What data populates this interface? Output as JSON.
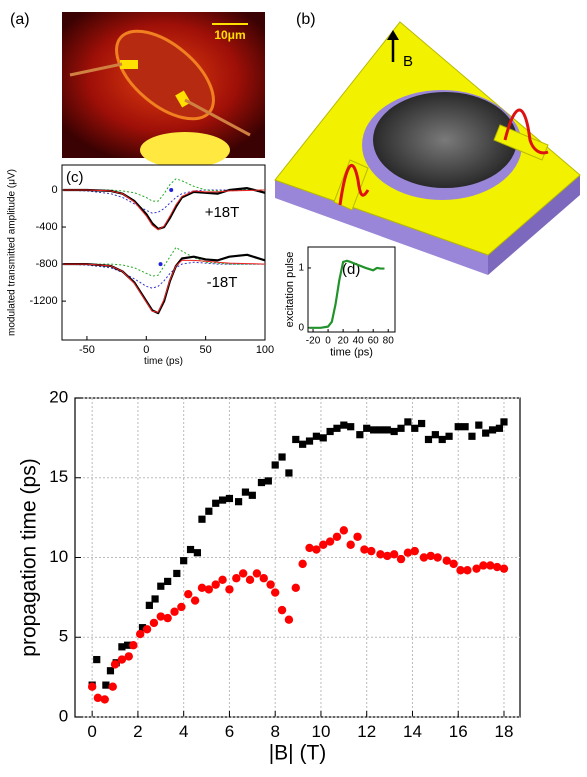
{
  "panels": {
    "a": {
      "label": "(a)",
      "scale_bar": "10μm"
    },
    "b": {
      "label": "(b)",
      "field": "B"
    }
  },
  "chart_data": [
    {
      "type": "line",
      "label": "(c)",
      "xlabel": "time (ps)",
      "ylabel": "modulated transmitted amplitude (μV)",
      "annotations": [
        "+18T",
        "-18T"
      ],
      "x": [
        -70,
        -50,
        -30,
        -20,
        -10,
        0,
        5,
        10,
        15,
        20,
        25,
        30,
        40,
        50,
        60,
        70,
        85,
        100
      ],
      "xlim": [
        -71,
        100
      ],
      "xticks": [
        -50,
        0,
        50,
        100
      ],
      "ylim": [
        -1620,
        270
      ],
      "yticks": [
        0,
        -400,
        -800,
        -1200
      ],
      "grid": false,
      "series": [
        {
          "color": "#3333cc",
          "style": "dotted",
          "values": [
            0,
            -10,
            -40,
            -80,
            -150,
            -220,
            -250,
            -240,
            -200,
            -140,
            -80,
            -40,
            -10,
            0,
            0,
            0,
            0,
            0
          ]
        },
        {
          "color": "#22aa22",
          "style": "dotted",
          "values": [
            0,
            0,
            0,
            -10,
            -30,
            -80,
            -120,
            -120,
            -40,
            60,
            120,
            100,
            40,
            0,
            -10,
            -10,
            0,
            0
          ]
        },
        {
          "color": "#000000",
          "style": "thick",
          "values": [
            0,
            0,
            -10,
            -40,
            -120,
            -260,
            -360,
            -420,
            -400,
            -300,
            -180,
            -80,
            -20,
            -30,
            -40,
            0,
            20,
            -30
          ]
        },
        {
          "color": "#ee2222",
          "style": "thin",
          "values": [
            0,
            0,
            -10,
            -40,
            -130,
            -280,
            -380,
            -430,
            -390,
            -280,
            -160,
            -70,
            -10,
            -20,
            -20,
            -10,
            -5,
            0
          ]
        },
        {
          "color": "#3333cc",
          "style": "dotted",
          "values": [
            -800,
            -810,
            -840,
            -890,
            -960,
            -1040,
            -1060,
            -1040,
            -980,
            -900,
            -840,
            -800,
            -780,
            -790,
            -800,
            -800,
            -800,
            -800
          ]
        },
        {
          "color": "#22aa22",
          "style": "dotted",
          "values": [
            -800,
            -800,
            -800,
            -810,
            -840,
            -900,
            -930,
            -920,
            -820,
            -720,
            -620,
            -660,
            -730,
            -780,
            -790,
            -800,
            -800,
            -800
          ]
        },
        {
          "color": "#000000",
          "style": "thick",
          "values": [
            -800,
            -800,
            -820,
            -880,
            -1000,
            -1200,
            -1300,
            -1330,
            -1200,
            -980,
            -820,
            -740,
            -720,
            -750,
            -760,
            -720,
            -700,
            -760
          ]
        },
        {
          "color": "#ee2222",
          "style": "thin",
          "values": [
            -800,
            -800,
            -820,
            -880,
            -1010,
            -1210,
            -1310,
            -1320,
            -1180,
            -970,
            -820,
            -760,
            -760,
            -770,
            -780,
            -790,
            -795,
            -800
          ]
        },
        {
          "color": "#2222dd",
          "marker": "circle",
          "x": [
            21,
            12
          ],
          "values": [
            0,
            -800
          ]
        }
      ]
    },
    {
      "type": "line",
      "label": "(d)",
      "xlabel": "time (ps)",
      "ylabel": "excitation pulse",
      "x": [
        -25,
        -10,
        0,
        5,
        10,
        15,
        20,
        25,
        30,
        40,
        50,
        60,
        65,
        70,
        75
      ],
      "xlim": [
        -26.7,
        89
      ],
      "xticks": [
        -20,
        0,
        20,
        40,
        60,
        80
      ],
      "ylim": [
        -0.07,
        1.35
      ],
      "yticks": [
        0,
        1
      ],
      "grid": false,
      "series": [
        {
          "color": "#22932a",
          "style": "thick",
          "values": [
            0,
            0,
            0.02,
            0.1,
            0.4,
            0.8,
            1.1,
            1.12,
            1.1,
            1.05,
            1.0,
            0.96,
            1.0,
            0.99,
            0.99
          ]
        }
      ]
    },
    {
      "type": "scatter",
      "xlabel": "|B| (T)",
      "ylabel": "propagation time (ps)",
      "xlim": [
        -0.75,
        18.7
      ],
      "xticks": [
        0,
        2,
        4,
        6,
        8,
        10,
        12,
        14,
        16,
        18
      ],
      "ylim": [
        0,
        20
      ],
      "yticks": [
        0,
        5,
        10,
        15,
        20
      ],
      "grid": true,
      "series": [
        {
          "color": "#000000",
          "marker": "square",
          "x": [
            0,
            0.2,
            0.6,
            0.8,
            1.05,
            1.3,
            1.55,
            2.2,
            2.5,
            2.75,
            3.0,
            3.3,
            3.7,
            4.0,
            4.3,
            4.6,
            4.8,
            5.1,
            5.4,
            5.7,
            6.0,
            6.4,
            6.7,
            7.0,
            7.4,
            7.7,
            8.0,
            8.3,
            8.6,
            8.9,
            9.2,
            9.5,
            9.8,
            10.1,
            10.4,
            10.7,
            11.0,
            11.3,
            11.7,
            12.0,
            12.3,
            12.6,
            12.9,
            13.2,
            13.5,
            13.8,
            14.1,
            14.4,
            14.7,
            15.0,
            15.3,
            15.6,
            16.0,
            16.3,
            16.6,
            16.9,
            17.2,
            17.5,
            17.8,
            18.0
          ],
          "values": [
            2.0,
            3.6,
            2.0,
            2.9,
            3.4,
            4.4,
            4.5,
            5.6,
            7.0,
            7.4,
            8.2,
            8.5,
            9.0,
            9.8,
            10.5,
            10.3,
            12.4,
            12.9,
            13.4,
            13.6,
            13.7,
            13.5,
            14.1,
            13.9,
            14.7,
            14.8,
            15.8,
            16.3,
            15.3,
            17.4,
            17.1,
            17.3,
            17.6,
            17.5,
            17.9,
            18.1,
            18.3,
            18.2,
            17.7,
            18.1,
            18.0,
            18.0,
            18.0,
            17.9,
            18.1,
            18.5,
            18.1,
            18.4,
            17.4,
            17.7,
            17.4,
            17.6,
            18.2,
            18.2,
            17.6,
            18.3,
            17.8,
            18.0,
            18.1,
            18.5
          ]
        },
        {
          "color": "#ff0000",
          "marker": "circle",
          "x": [
            0,
            0.25,
            0.55,
            0.9,
            1.0,
            1.3,
            1.6,
            1.8,
            2.1,
            2.4,
            2.7,
            3.0,
            3.3,
            3.6,
            3.9,
            4.2,
            4.5,
            4.8,
            5.1,
            5.4,
            5.7,
            6.0,
            6.3,
            6.6,
            6.9,
            7.2,
            7.5,
            7.8,
            8.0,
            8.3,
            8.6,
            8.9,
            9.2,
            9.5,
            9.8,
            10.1,
            10.4,
            10.7,
            11.0,
            11.3,
            11.6,
            11.9,
            12.2,
            12.6,
            12.9,
            13.2,
            13.5,
            13.8,
            14.1,
            14.5,
            14.8,
            15.1,
            15.5,
            15.8,
            16.1,
            16.4,
            16.8,
            17.1,
            17.4,
            17.7,
            18.0
          ],
          "values": [
            1.9,
            1.2,
            1.1,
            1.9,
            3.3,
            3.6,
            3.8,
            4.5,
            5.2,
            5.5,
            5.9,
            6.3,
            6.2,
            6.6,
            6.9,
            7.7,
            7.3,
            8.1,
            8.0,
            8.3,
            8.6,
            8.0,
            8.7,
            9.0,
            8.6,
            9.0,
            8.7,
            8.3,
            7.8,
            6.7,
            6.1,
            8.1,
            9.6,
            10.6,
            10.5,
            10.8,
            11.0,
            11.3,
            11.7,
            10.8,
            11.3,
            10.5,
            10.4,
            10.2,
            10.1,
            10.2,
            9.9,
            10.3,
            10.4,
            10.0,
            10.1,
            10.0,
            9.8,
            9.6,
            9.2,
            9.2,
            9.3,
            9.5,
            9.5,
            9.4,
            9.3
          ]
        }
      ]
    }
  ]
}
